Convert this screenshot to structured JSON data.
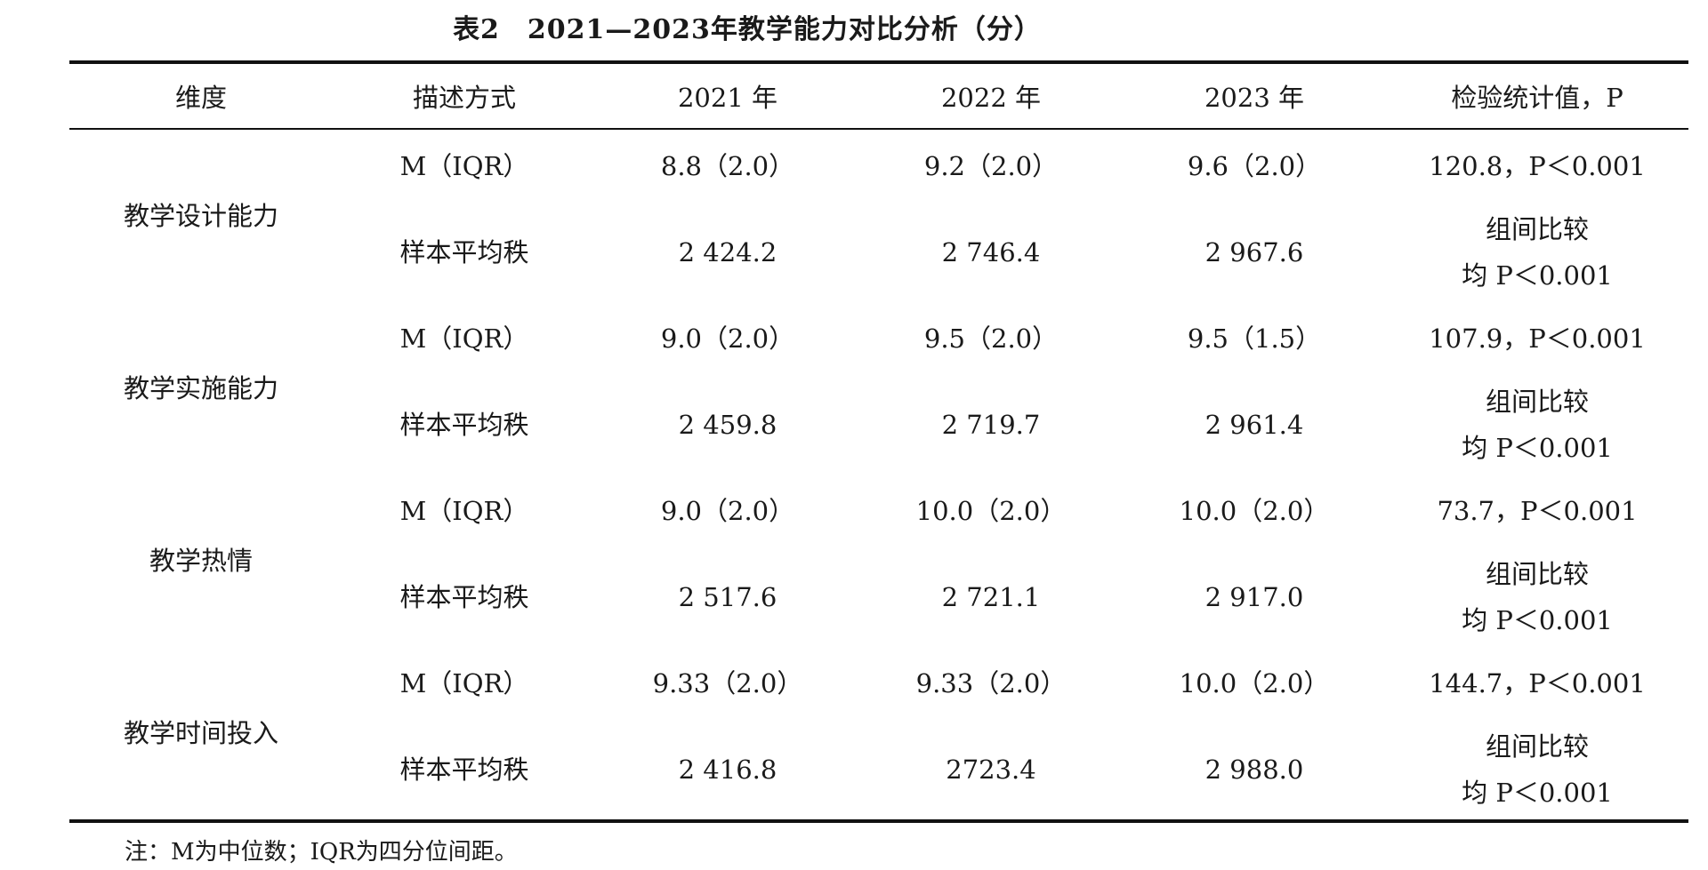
{
  "title": "表2　2021—2023年教学能力对比分析（分）",
  "header": {
    "dimension": "维度",
    "description": "描述方式",
    "year_2021": "2021 年",
    "year_2022": "2022 年",
    "year_2023": "2023 年",
    "statistic": "检验统计值，P"
  },
  "rows": [
    {
      "dimension": "教学设计能力",
      "median_label": "M（IQR）",
      "median_2021": "8.8（2.0）",
      "median_2022": "9.2（2.0）",
      "median_2023": "9.6（2.0）",
      "median_stat": "120.8，P＜0.001",
      "rank_label": "样本平均秩",
      "rank_2021": "2 424.2",
      "rank_2022": "2 746.4",
      "rank_2023": "2 967.6",
      "rank_stat_1": "组间比较",
      "rank_stat_2": "均 P＜0.001"
    },
    {
      "dimension": "教学实施能力",
      "median_label": "M（IQR）",
      "median_2021": "9.0（2.0）",
      "median_2022": "9.5（2.0）",
      "median_2023": "9.5（1.5）",
      "median_stat": "107.9，P＜0.001",
      "rank_label": "样本平均秩",
      "rank_2021": "2 459.8",
      "rank_2022": "2 719.7",
      "rank_2023": "2 961.4",
      "rank_stat_1": "组间比较",
      "rank_stat_2": "均 P＜0.001"
    },
    {
      "dimension": "教学热情",
      "median_label": "M（IQR）",
      "median_2021": "9.0（2.0）",
      "median_2022": "10.0（2.0）",
      "median_2023": "10.0（2.0）",
      "median_stat": "73.7，P＜0.001",
      "rank_label": "样本平均秩",
      "rank_2021": "2 517.6",
      "rank_2022": "2 721.1",
      "rank_2023": "2 917.0",
      "rank_stat_1": "组间比较",
      "rank_stat_2": "均 P＜0.001"
    },
    {
      "dimension": "教学时间投入",
      "median_label": "M（IQR）",
      "median_2021": "9.33（2.0）",
      "median_2022": "9.33（2.0）",
      "median_2023": "10.0（2.0）",
      "median_stat": "144.7，P＜0.001",
      "rank_label": "样本平均秩",
      "rank_2021": "2 416.8",
      "rank_2022": "2723.4",
      "rank_2023": "2 988.0",
      "rank_stat_1": "组间比较",
      "rank_stat_2": "均 P＜0.001"
    }
  ],
  "note": "注：M为中位数；IQR为四分位间距。"
}
